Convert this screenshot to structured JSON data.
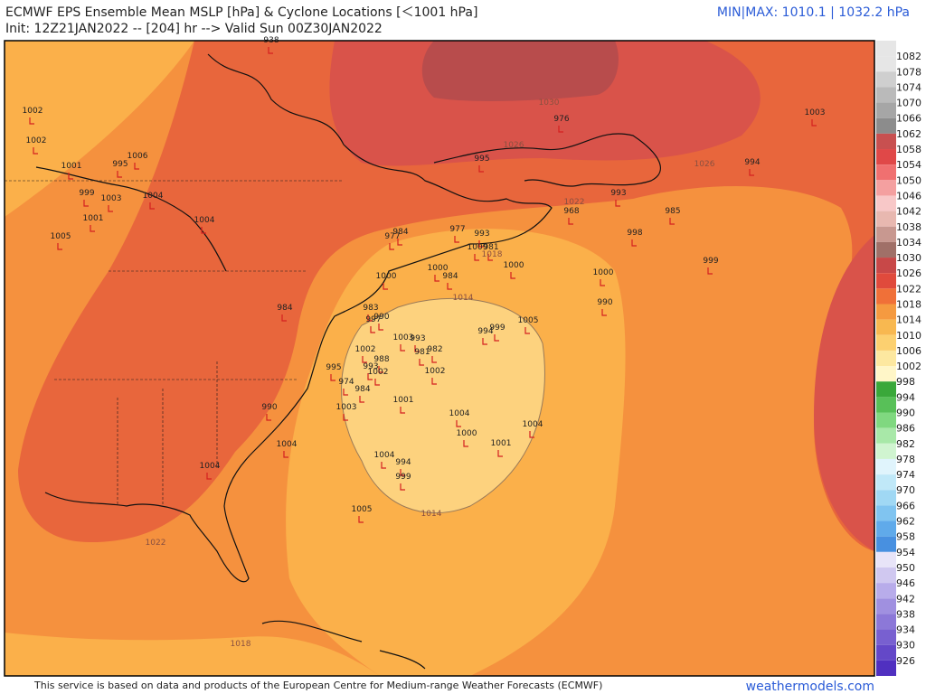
{
  "header": {
    "title": "ECMWF EPS Ensemble Mean MSLP [hPa] & Cyclone Locations [＜1001 hPa]",
    "init": "Init: 12Z21JAN2022 -- [204] hr --> Valid Sun 00Z30JAN2022",
    "minmax": "MIN|MAX: 1010.1 | 1032.2 hPa"
  },
  "cyclones": [
    "1002",
    "1002",
    "1001",
    "995",
    "1006",
    "999",
    "1003",
    "1004",
    "1001",
    "1004",
    "1005",
    "984",
    "984",
    "977",
    "977",
    "993",
    "981",
    "1009",
    "995",
    "1000",
    "984",
    "1000",
    "1000",
    "983",
    "990",
    "997",
    "1003",
    "993",
    "981",
    "982",
    "1002",
    "988",
    "993",
    "1002",
    "995",
    "974",
    "984",
    "1002",
    "1001",
    "1003",
    "990",
    "994",
    "999",
    "1005",
    "1004",
    "1000",
    "1001",
    "1004",
    "1004",
    "1004",
    "1004",
    "994",
    "999",
    "1005",
    "968",
    "993",
    "976",
    "998",
    "985",
    "1000",
    "990",
    "999",
    "994",
    "1003",
    "938"
  ],
  "contour_labels": [
    "1030",
    "1026",
    "1026",
    "1022",
    "1018",
    "1014",
    "1014",
    "1022",
    "1018"
  ],
  "colorbar": [
    "1082",
    "1078",
    "1074",
    "1070",
    "1066",
    "1062",
    "1058",
    "1054",
    "1050",
    "1046",
    "1042",
    "1038",
    "1034",
    "1030",
    "1026",
    "1022",
    "1018",
    "1014",
    "1010",
    "1006",
    "1002",
    "998",
    "994",
    "990",
    "986",
    "982",
    "978",
    "974",
    "970",
    "966",
    "962",
    "958",
    "954",
    "950",
    "946",
    "942",
    "938",
    "934",
    "930",
    "926"
  ],
  "footer": {
    "credit": "This service is based on data and products of the European Centre for Medium-range Weather Forecasts (ECMWF)",
    "site": "weathermodels.com"
  }
}
